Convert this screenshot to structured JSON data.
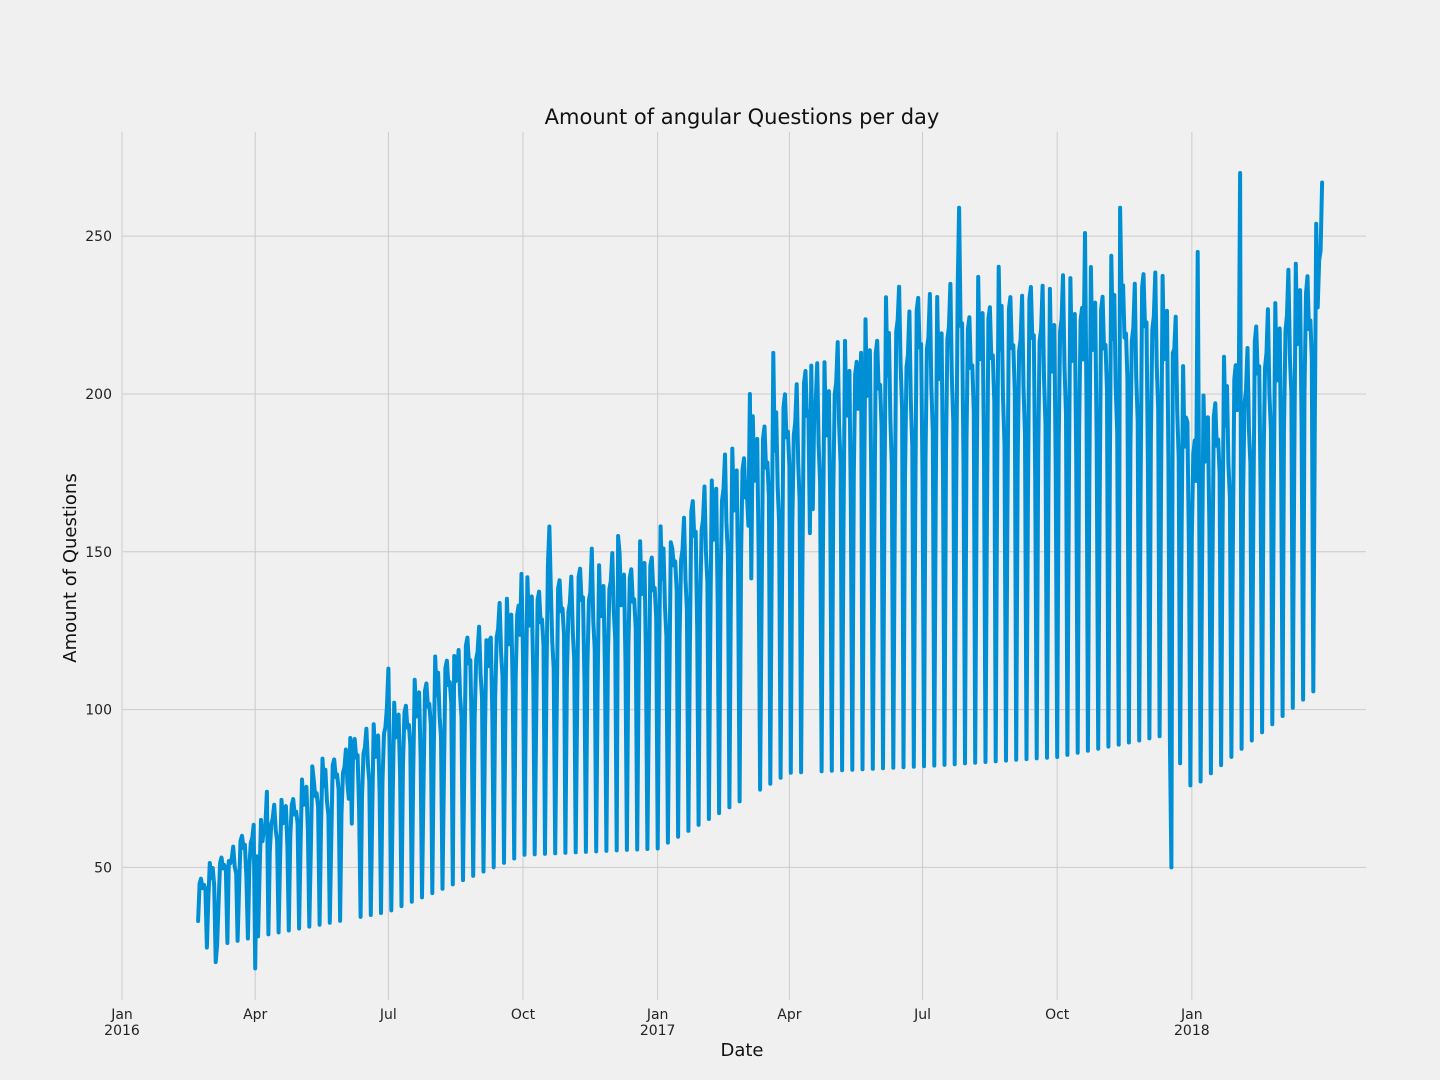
{
  "chart_data": {
    "type": "line",
    "title": "Amount of angular Questions per day",
    "xlabel": "Date",
    "ylabel": "Amount of Questions",
    "xlim": [
      "2016-01-01",
      "2018-04-30"
    ],
    "ylim": [
      8,
      283
    ],
    "grid": true,
    "x_ticks": [
      {
        "date": "2016-01-01",
        "label": "Jan",
        "sublabel": "2016"
      },
      {
        "date": "2016-04-01",
        "label": "Apr",
        "sublabel": ""
      },
      {
        "date": "2016-07-01",
        "label": "Jul",
        "sublabel": ""
      },
      {
        "date": "2016-10-01",
        "label": "Oct",
        "sublabel": ""
      },
      {
        "date": "2017-01-01",
        "label": "Jan",
        "sublabel": "2017"
      },
      {
        "date": "2017-04-01",
        "label": "Apr",
        "sublabel": ""
      },
      {
        "date": "2017-07-01",
        "label": "Jul",
        "sublabel": ""
      },
      {
        "date": "2017-10-01",
        "label": "Oct",
        "sublabel": ""
      },
      {
        "date": "2018-01-01",
        "label": "Jan",
        "sublabel": "2018"
      }
    ],
    "y_ticks": [
      50,
      100,
      150,
      200,
      250
    ],
    "series": [
      {
        "color": "#008fd5",
        "x_start": "2016-02-22",
        "x_end": "2018-03-31",
        "frequency": "daily",
        "key_points": [
          {
            "x": "2016-02-22",
            "y": 33
          },
          {
            "x": "2016-03-05",
            "y": 20
          },
          {
            "x": "2016-03-14",
            "y": 52
          },
          {
            "x": "2016-04-01",
            "y": 18
          },
          {
            "x": "2016-04-09",
            "y": 74
          },
          {
            "x": "2016-05-10",
            "y": 82
          },
          {
            "x": "2016-06-05",
            "y": 91
          },
          {
            "x": "2016-07-01",
            "y": 113
          },
          {
            "x": "2016-08-15",
            "y": 117
          },
          {
            "x": "2016-09-06",
            "y": 122
          },
          {
            "x": "2016-09-30",
            "y": 143
          },
          {
            "x": "2016-10-19",
            "y": 158
          },
          {
            "x": "2016-11-17",
            "y": 151
          },
          {
            "x": "2016-12-05",
            "y": 155
          },
          {
            "x": "2017-01-11",
            "y": 151
          },
          {
            "x": "2017-02-10",
            "y": 170
          },
          {
            "x": "2017-03-05",
            "y": 200
          },
          {
            "x": "2017-03-21",
            "y": 213
          },
          {
            "x": "2017-04-16",
            "y": 209
          },
          {
            "x": "2017-05-20",
            "y": 213
          },
          {
            "x": "2017-06-15",
            "y": 234
          },
          {
            "x": "2017-07-26",
            "y": 259
          },
          {
            "x": "2017-10-20",
            "y": 251
          },
          {
            "x": "2017-11-13",
            "y": 259
          },
          {
            "x": "2017-12-18",
            "y": 50
          },
          {
            "x": "2018-01-05",
            "y": 245
          },
          {
            "x": "2018-02-03",
            "y": 270
          },
          {
            "x": "2018-03-31",
            "y": 267
          }
        ],
        "trend": [
          {
            "x": "2016-02-22",
            "weekday_peak": 45,
            "weekend_trough": 24
          },
          {
            "x": "2016-04-01",
            "weekday_peak": 62,
            "weekend_trough": 28
          },
          {
            "x": "2016-07-01",
            "weekday_peak": 97,
            "weekend_trough": 36
          },
          {
            "x": "2016-10-01",
            "weekday_peak": 135,
            "weekend_trough": 54
          },
          {
            "x": "2017-01-01",
            "weekday_peak": 148,
            "weekend_trough": 56
          },
          {
            "x": "2017-04-01",
            "weekday_peak": 198,
            "weekend_trough": 80
          },
          {
            "x": "2017-07-01",
            "weekday_peak": 225,
            "weekend_trough": 82
          },
          {
            "x": "2017-10-01",
            "weekday_peak": 228,
            "weekend_trough": 85
          },
          {
            "x": "2017-12-15",
            "weekday_peak": 232,
            "weekend_trough": 92
          },
          {
            "x": "2018-01-01",
            "weekday_peak": 185,
            "weekend_trough": 75
          },
          {
            "x": "2018-03-31",
            "weekday_peak": 245,
            "weekend_trough": 108
          }
        ]
      }
    ]
  }
}
